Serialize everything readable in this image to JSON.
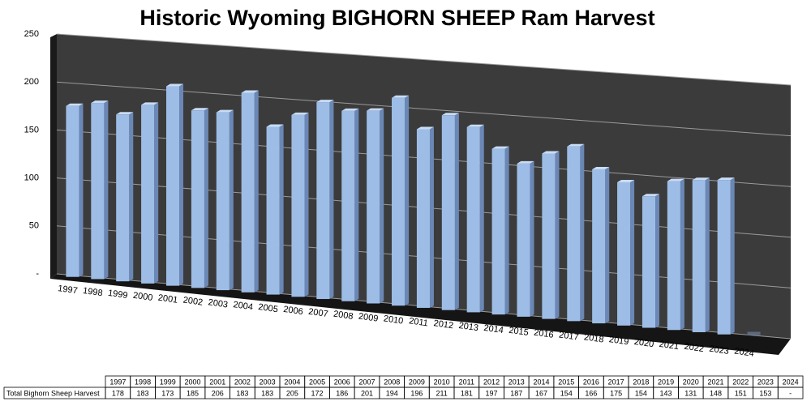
{
  "chart_data": {
    "type": "bar3d",
    "title": "Historic Wyoming BIGHORN SHEEP Ram Harvest",
    "categories": [
      "1997",
      "1998",
      "1999",
      "2000",
      "2001",
      "2002",
      "2003",
      "2004",
      "2005",
      "2006",
      "2007",
      "2008",
      "2009",
      "2010",
      "2011",
      "2012",
      "2013",
      "2014",
      "2015",
      "2016",
      "2017",
      "2018",
      "2019",
      "2020",
      "2021",
      "2022",
      "2023",
      "2024"
    ],
    "series": [
      {
        "name": "Total Bighorn Sheep Harvest",
        "color": "#9dbde6",
        "values": [
          178,
          183,
          173,
          185,
          206,
          183,
          183,
          205,
          172,
          186,
          201,
          194,
          196,
          211,
          181,
          197,
          187,
          167,
          154,
          166,
          175,
          154,
          143,
          131,
          148,
          151,
          153,
          null
        ],
        "value_labels": [
          "178",
          "183",
          "173",
          "185",
          "206",
          "183",
          "183",
          "205",
          "172",
          "186",
          "201",
          "194",
          "196",
          "211",
          "181",
          "197",
          "187",
          "167",
          "154",
          "166",
          "175",
          "154",
          "143",
          "131",
          "148",
          "151",
          "153",
          "-"
        ]
      }
    ],
    "ylim": [
      0,
      250
    ],
    "yticks": [
      {
        "value": 0,
        "label": "-"
      },
      50,
      100,
      150,
      200,
      250
    ],
    "grid": true
  }
}
